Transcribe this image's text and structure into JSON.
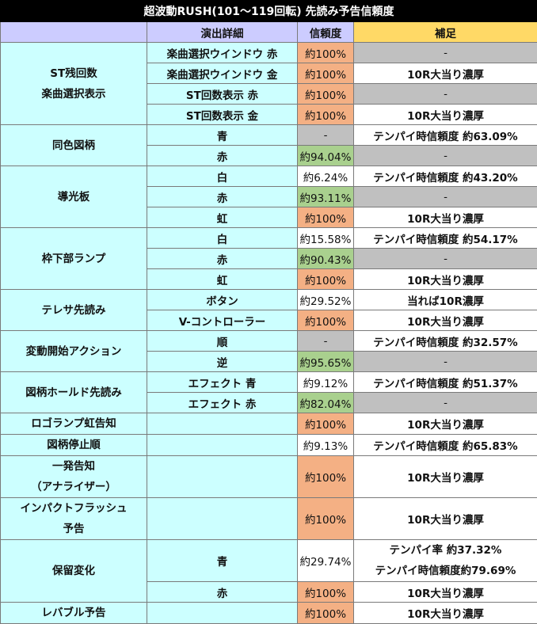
{
  "title": "超波動RUSH(101～119回転) 先読み予告信頼度",
  "headers": {
    "detail": "演出詳細",
    "reliability": "信頼度",
    "note": "補足"
  },
  "categories": {
    "st": "ST残回数\n楽曲選択表示",
    "same_color": "同色図柄",
    "light_plate": "導光板",
    "frame_lamp": "枠下部ランプ",
    "telesa": "テレサ先読み",
    "var_action": "変動開始アクション",
    "hold": "図柄ホールド先読み",
    "logo": "ロゴランプ虹告知",
    "stop_order": "図柄停止順",
    "ippatsu": "一発告知\n（アナライザー）",
    "impact": "インパクトフラッシュ\n予告",
    "reserve": "保留変化",
    "lever": "レバブル予告"
  },
  "rows": [
    {
      "detail": "楽曲選択ウインドウ 赤",
      "rel": "約100%",
      "note": "-"
    },
    {
      "detail": "楽曲選択ウインドウ 金",
      "rel": "約100%",
      "note": "10R大当り濃厚"
    },
    {
      "detail": "ST回数表示 赤",
      "rel": "約100%",
      "note": "-"
    },
    {
      "detail": "ST回数表示 金",
      "rel": "約100%",
      "note": "10R大当り濃厚"
    },
    {
      "detail": "青",
      "rel": "-",
      "note": "テンパイ時信頼度 約63.09%"
    },
    {
      "detail": "赤",
      "rel": "約94.04%",
      "note": "-"
    },
    {
      "detail": "白",
      "rel": "約6.24%",
      "note": "テンパイ時信頼度 約43.20%"
    },
    {
      "detail": "赤",
      "rel": "約93.11%",
      "note": "-"
    },
    {
      "detail": "虹",
      "rel": "約100%",
      "note": "10R大当り濃厚"
    },
    {
      "detail": "白",
      "rel": "約15.58%",
      "note": "テンパイ時信頼度 約54.17%"
    },
    {
      "detail": "赤",
      "rel": "約90.43%",
      "note": "-"
    },
    {
      "detail": "虹",
      "rel": "約100%",
      "note": "10R大当り濃厚"
    },
    {
      "detail": "ボタン",
      "rel": "約29.52%",
      "note": "当れば10R濃厚"
    },
    {
      "detail": "V-コントローラー",
      "rel": "約100%",
      "note": "10R大当り濃厚"
    },
    {
      "detail": "順",
      "rel": "-",
      "note": "テンパイ時信頼度 約32.57%"
    },
    {
      "detail": "逆",
      "rel": "約95.65%",
      "note": "-"
    },
    {
      "detail": "エフェクト 青",
      "rel": "約9.12%",
      "note": "テンパイ時信頼度 約51.37%"
    },
    {
      "detail": "エフェクト 赤",
      "rel": "約82.04%",
      "note": "-"
    },
    {
      "detail": "",
      "rel": "約100%",
      "note": "10R大当り濃厚"
    },
    {
      "detail": "",
      "rel": "約9.13%",
      "note": "テンパイ時信頼度 約65.83%"
    },
    {
      "detail": "",
      "rel": "約100%",
      "note": "10R大当り濃厚"
    },
    {
      "detail": "",
      "rel": "約100%",
      "note": "10R大当り濃厚"
    },
    {
      "detail": "青",
      "rel": "約29.74%",
      "note": "テンパイ率 約37.32%\nテンパイ時信頼度約79.69%"
    },
    {
      "detail": "赤",
      "rel": "約100%",
      "note": "10R大当り濃厚"
    },
    {
      "detail": "",
      "rel": "約100%",
      "note": "10R大当り濃厚"
    }
  ],
  "colors": {
    "cyan": "#ccffff",
    "header_blue": "#ccccff",
    "header_yellow": "#ffd966",
    "orange": "#f4b084",
    "green": "#a9d08e",
    "gray": "#c0c0c0"
  }
}
